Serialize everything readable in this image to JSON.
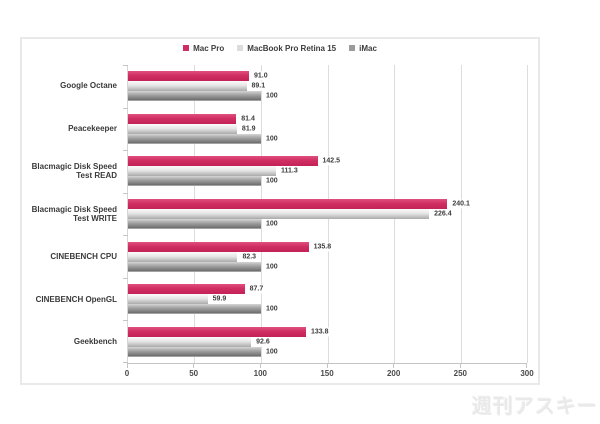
{
  "chart_data": {
    "type": "bar",
    "orientation": "horizontal",
    "title": "",
    "categories": [
      "Google Octane",
      "Peacekeeper",
      "Blacmagic Disk Speed Test READ",
      "Blacmagic Disk Speed Test WRITE",
      "CINEBENCH CPU",
      "CINEBENCH OpenGL",
      "Geekbench"
    ],
    "series": [
      {
        "name": "Mac Pro",
        "color": "#d02e63",
        "values": [
          91.0,
          81.4,
          142.5,
          240.1,
          135.8,
          87.7,
          133.8
        ],
        "labels": [
          "91.0",
          "81.4",
          "142.5",
          "240.1",
          "135.8",
          "87.7",
          "133.8"
        ]
      },
      {
        "name": "MacBook Pro Retina 15",
        "color": "#dcdcdc",
        "values": [
          89.1,
          81.9,
          111.3,
          226.4,
          82.3,
          59.9,
          92.6
        ],
        "labels": [
          "89.1",
          "81.9",
          "111.3",
          "226.4",
          "82.3",
          "59.9",
          "92.6"
        ]
      },
      {
        "name": "iMac",
        "color": "#9b9b9b",
        "values": [
          100,
          100,
          100,
          100,
          100,
          100,
          100
        ],
        "labels": [
          "100",
          "100",
          "100",
          "100",
          "100",
          "100",
          "100"
        ]
      }
    ],
    "xlim": [
      0,
      300
    ],
    "x_ticks": [
      "0",
      "50",
      "100",
      "150",
      "200",
      "250",
      "300"
    ],
    "gridlines": true,
    "legend_position": "top"
  },
  "watermark": {
    "text": "週刊アスキー"
  }
}
